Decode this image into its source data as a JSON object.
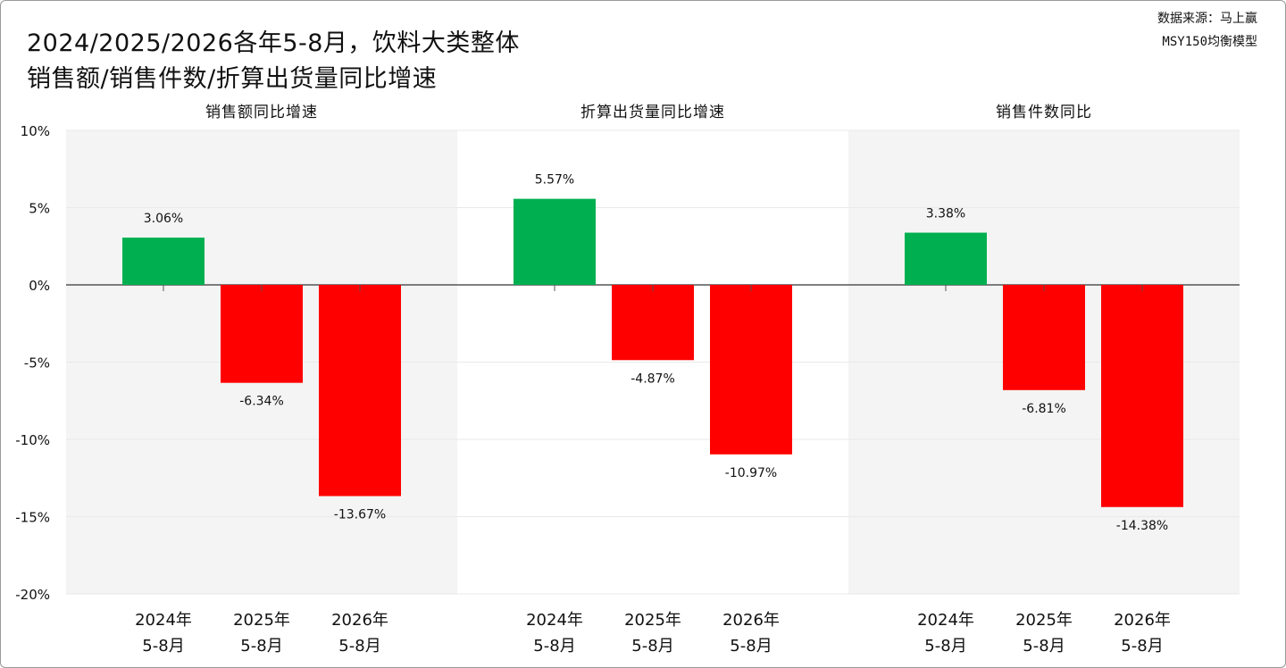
{
  "title_line1": "2024/2025/2026各年5-8月，饮料大类整体",
  "title_line2": "销售额/销售件数/折算出货量同比增速",
  "source_line1": "数据来源：马上赢",
  "source_line2": "MSY150均衡模型",
  "colors": {
    "positive": "#00b050",
    "negative": "#ff0000",
    "panel_shade": "#f4f4f4"
  },
  "chart_data": {
    "type": "bar",
    "categories": [
      [
        "2024年",
        "5-8月"
      ],
      [
        "2025年",
        "5-8月"
      ],
      [
        "2026年",
        "5-8月"
      ]
    ],
    "ylim": [
      -20,
      10
    ],
    "yticks": [
      -20,
      -15,
      -10,
      -5,
      0,
      5,
      10
    ],
    "ytick_labels": [
      "-20%",
      "-15%",
      "-10%",
      "-5%",
      "0%",
      "5%",
      "10%"
    ],
    "grid": true,
    "panels": [
      {
        "title": "销售额同比增速",
        "values": [
          3.06,
          -6.34,
          -13.67
        ],
        "labels": [
          "3.06%",
          "-6.34%",
          "-13.67%"
        ]
      },
      {
        "title": "折算出货量同比增速",
        "values": [
          5.57,
          -4.87,
          -10.97
        ],
        "labels": [
          "5.57%",
          "-4.87%",
          "-10.97%"
        ]
      },
      {
        "title": "销售件数同比",
        "values": [
          3.38,
          -6.81,
          -14.38
        ],
        "labels": [
          "3.38%",
          "-6.81%",
          "-14.38%"
        ]
      }
    ]
  }
}
